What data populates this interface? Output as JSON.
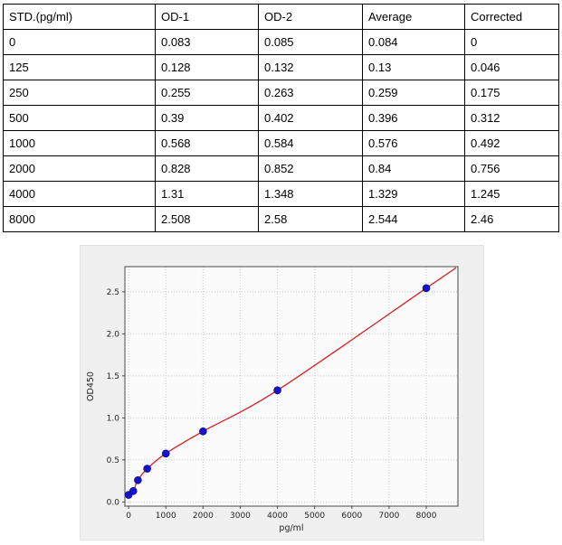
{
  "table": {
    "headers": [
      "STD.(pg/ml)",
      "OD-1",
      "OD-2",
      "Average",
      "Corrected"
    ],
    "rows": [
      [
        "0",
        "0.083",
        "0.085",
        "0.084",
        "0"
      ],
      [
        "125",
        "0.128",
        "0.132",
        "0.13",
        "0.046"
      ],
      [
        "250",
        "0.255",
        "0.263",
        "0.259",
        "0.175"
      ],
      [
        "500",
        "0.39",
        "0.402",
        "0.396",
        "0.312"
      ],
      [
        "1000",
        "0.568",
        "0.584",
        "0.576",
        "0.492"
      ],
      [
        "2000",
        "0.828",
        "0.852",
        "0.84",
        "0.756"
      ],
      [
        "4000",
        "1.31",
        "1.348",
        "1.329",
        "1.245"
      ],
      [
        "8000",
        "2.508",
        "2.58",
        "2.544",
        "2.46"
      ]
    ]
  },
  "chart_data": {
    "type": "scatter",
    "x": [
      0,
      125,
      250,
      500,
      1000,
      2000,
      4000,
      8000
    ],
    "y": [
      0.084,
      0.13,
      0.259,
      0.396,
      0.576,
      0.84,
      1.329,
      2.544
    ],
    "has_fit_curve": true,
    "title": "",
    "xlabel": "pg/ml",
    "ylabel": "OD450",
    "xlim": [
      -100,
      8850
    ],
    "ylim": [
      -0.05,
      2.8
    ],
    "xticks": [
      0,
      1000,
      2000,
      3000,
      4000,
      5000,
      6000,
      7000,
      8000
    ],
    "yticks": [
      0.0,
      0.5,
      1.0,
      1.5,
      2.0,
      2.5
    ],
    "grid": "dotted",
    "grid_color": "#c9c9c9",
    "point_color": "#1414cc",
    "point_edge_color": "#000080",
    "line_color": "#d62020",
    "figure_bg": "#f0f0f0",
    "plot_bg": "#fbfbfb",
    "spine_color": "#4a4a4a",
    "tick_text_color": "#222222"
  }
}
